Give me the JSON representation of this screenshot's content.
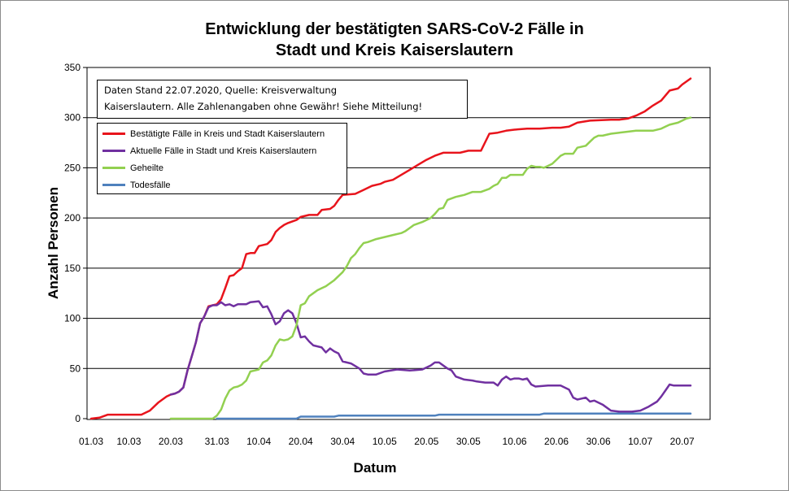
{
  "chart_data": {
    "type": "line",
    "title": "Entwicklung der bestätigten SARS-CoV-2 Fälle in Stadt und Kreis Kaiserslautern",
    "title_lines": [
      "Entwicklung der bestätigten SARS-CoV-2 Fälle in",
      "Stadt und Kreis Kaiserslautern"
    ],
    "note_lines": [
      "Daten Stand 22.07.2020, Quelle: Kreisverwaltung",
      "Kaiserslautern. Alle Zahlenangaben ohne Gewähr! Siehe Mitteilung!"
    ],
    "xlabel": "Datum",
    "ylabel": "Anzahl Personen",
    "x_range": [
      "01.03",
      "22.07"
    ],
    "ylim": [
      0,
      350
    ],
    "y_ticks": [
      0,
      50,
      100,
      150,
      200,
      250,
      300,
      350
    ],
    "x_tick_labels": [
      "01.03",
      "10.03",
      "20.03",
      "31.03",
      "10.04",
      "20.04",
      "30.04",
      "10.05",
      "20.05",
      "30.05",
      "10.06",
      "20.06",
      "30.06",
      "10.07",
      "20.07"
    ],
    "grid": "horizontal",
    "legend_position": "top-left",
    "series": [
      {
        "name": "Bestätigte Fälle in Kreis und Stadt Kaiserslautern",
        "color": "#e8141c",
        "points": [
          [
            "01.03",
            0
          ],
          [
            "03.03",
            1
          ],
          [
            "05.03",
            4
          ],
          [
            "10.03",
            4
          ],
          [
            "13.03",
            4
          ],
          [
            "15.03",
            8
          ],
          [
            "17.03",
            16
          ],
          [
            "19.03",
            22
          ],
          [
            "20.03",
            24
          ],
          [
            "21.03",
            25
          ],
          [
            "22.03",
            27
          ],
          [
            "23.03",
            31
          ],
          [
            "24.03",
            48
          ],
          [
            "25.03",
            62
          ],
          [
            "26.03",
            76
          ],
          [
            "27.03",
            95
          ],
          [
            "28.03",
            102
          ],
          [
            "29.03",
            112
          ],
          [
            "30.03",
            113
          ],
          [
            "31.03",
            114
          ],
          [
            "01.04",
            119
          ],
          [
            "02.04",
            130
          ],
          [
            "03.04",
            142
          ],
          [
            "04.04",
            143
          ],
          [
            "05.04",
            147
          ],
          [
            "06.04",
            150
          ],
          [
            "07.04",
            164
          ],
          [
            "08.04",
            165
          ],
          [
            "09.04",
            165
          ],
          [
            "10.04",
            172
          ],
          [
            "12.04",
            174
          ],
          [
            "13.04",
            178
          ],
          [
            "14.04",
            186
          ],
          [
            "15.04",
            190
          ],
          [
            "16.04",
            193
          ],
          [
            "17.04",
            195
          ],
          [
            "19.04",
            198
          ],
          [
            "20.04",
            201
          ],
          [
            "22.04",
            203
          ],
          [
            "24.04",
            203
          ],
          [
            "25.04",
            208
          ],
          [
            "27.04",
            209
          ],
          [
            "28.04",
            212
          ],
          [
            "29.04",
            218
          ],
          [
            "30.04",
            223
          ],
          [
            "03.05",
            224
          ],
          [
            "05.05",
            228
          ],
          [
            "07.05",
            232
          ],
          [
            "09.05",
            234
          ],
          [
            "10.05",
            236
          ],
          [
            "12.05",
            238
          ],
          [
            "14.05",
            243
          ],
          [
            "16.05",
            248
          ],
          [
            "18.05",
            253
          ],
          [
            "20.05",
            258
          ],
          [
            "22.05",
            262
          ],
          [
            "24.05",
            265
          ],
          [
            "28.05",
            265
          ],
          [
            "30.05",
            267
          ],
          [
            "02.06",
            267
          ],
          [
            "04.06",
            284
          ],
          [
            "06.06",
            285
          ],
          [
            "08.06",
            287
          ],
          [
            "10.06",
            288
          ],
          [
            "13.06",
            289
          ],
          [
            "16.06",
            289
          ],
          [
            "19.06",
            290
          ],
          [
            "21.06",
            290
          ],
          [
            "23.06",
            291
          ],
          [
            "25.06",
            295
          ],
          [
            "28.06",
            297
          ],
          [
            "03.07",
            298
          ],
          [
            "05.07",
            298
          ],
          [
            "07.07",
            299
          ],
          [
            "09.07",
            302
          ],
          [
            "11.07",
            306
          ],
          [
            "13.07",
            312
          ],
          [
            "15.07",
            317
          ],
          [
            "17.07",
            327
          ],
          [
            "19.07",
            329
          ],
          [
            "20.07",
            333
          ],
          [
            "22.07",
            339
          ]
        ]
      },
      {
        "name": "Aktuelle Fälle in Stadt und Kreis Kaiserslautern",
        "color": "#7030a0",
        "points": [
          [
            "20.03",
            24
          ],
          [
            "21.03",
            25
          ],
          [
            "22.03",
            27
          ],
          [
            "23.03",
            31
          ],
          [
            "24.03",
            48
          ],
          [
            "25.03",
            62
          ],
          [
            "26.03",
            76
          ],
          [
            "27.03",
            95
          ],
          [
            "28.03",
            102
          ],
          [
            "29.03",
            111
          ],
          [
            "30.03",
            113
          ],
          [
            "31.03",
            113
          ],
          [
            "01.04",
            116
          ],
          [
            "02.04",
            113
          ],
          [
            "03.04",
            114
          ],
          [
            "04.04",
            112
          ],
          [
            "05.04",
            114
          ],
          [
            "07.04",
            114
          ],
          [
            "08.04",
            116
          ],
          [
            "10.04",
            117
          ],
          [
            "11.04",
            111
          ],
          [
            "12.04",
            112
          ],
          [
            "13.04",
            104
          ],
          [
            "14.04",
            94
          ],
          [
            "15.04",
            97
          ],
          [
            "16.04",
            105
          ],
          [
            "17.04",
            108
          ],
          [
            "18.04",
            105
          ],
          [
            "19.04",
            95
          ],
          [
            "20.04",
            81
          ],
          [
            "21.04",
            82
          ],
          [
            "22.04",
            77
          ],
          [
            "23.04",
            73
          ],
          [
            "25.04",
            71
          ],
          [
            "26.04",
            66
          ],
          [
            "27.04",
            70
          ],
          [
            "28.04",
            67
          ],
          [
            "29.04",
            65
          ],
          [
            "30.04",
            57
          ],
          [
            "02.05",
            55
          ],
          [
            "04.05",
            50
          ],
          [
            "05.05",
            45
          ],
          [
            "06.05",
            44
          ],
          [
            "08.05",
            44
          ],
          [
            "10.05",
            47
          ],
          [
            "13.05",
            49
          ],
          [
            "16.05",
            48
          ],
          [
            "19.05",
            49
          ],
          [
            "21.05",
            53
          ],
          [
            "22.05",
            56
          ],
          [
            "23.05",
            56
          ],
          [
            "25.05",
            50
          ],
          [
            "26.05",
            48
          ],
          [
            "27.05",
            42
          ],
          [
            "29.05",
            39
          ],
          [
            "31.05",
            38
          ],
          [
            "01.06",
            37
          ],
          [
            "03.06",
            36
          ],
          [
            "05.06",
            36
          ],
          [
            "06.06",
            33
          ],
          [
            "07.06",
            39
          ],
          [
            "08.06",
            42
          ],
          [
            "09.06",
            39
          ],
          [
            "10.06",
            40
          ],
          [
            "11.06",
            40
          ],
          [
            "12.06",
            39
          ],
          [
            "13.06",
            40
          ],
          [
            "14.06",
            34
          ],
          [
            "15.06",
            32
          ],
          [
            "18.06",
            33
          ],
          [
            "21.06",
            33
          ],
          [
            "23.06",
            29
          ],
          [
            "24.06",
            21
          ],
          [
            "25.06",
            19
          ],
          [
            "26.06",
            20
          ],
          [
            "27.06",
            21
          ],
          [
            "28.06",
            17
          ],
          [
            "29.06",
            18
          ],
          [
            "01.07",
            14
          ],
          [
            "03.07",
            8
          ],
          [
            "05.07",
            7
          ],
          [
            "08.07",
            7
          ],
          [
            "10.07",
            8
          ],
          [
            "12.07",
            12
          ],
          [
            "14.07",
            17
          ],
          [
            "15.07",
            22
          ],
          [
            "16.07",
            28
          ],
          [
            "17.07",
            34
          ],
          [
            "18.07",
            33
          ],
          [
            "19.07",
            33
          ],
          [
            "22.07",
            33
          ]
        ]
      },
      {
        "name": "Geheilte",
        "color": "#92d050",
        "points": [
          [
            "20.03",
            0
          ],
          [
            "30.03",
            0
          ],
          [
            "31.03",
            3
          ],
          [
            "01.04",
            9
          ],
          [
            "02.04",
            20
          ],
          [
            "03.04",
            28
          ],
          [
            "04.04",
            31
          ],
          [
            "05.04",
            32
          ],
          [
            "06.04",
            34
          ],
          [
            "07.04",
            38
          ],
          [
            "08.04",
            47
          ],
          [
            "09.04",
            48
          ],
          [
            "10.04",
            49
          ],
          [
            "11.04",
            56
          ],
          [
            "12.04",
            58
          ],
          [
            "13.04",
            63
          ],
          [
            "14.04",
            73
          ],
          [
            "15.04",
            79
          ],
          [
            "16.04",
            78
          ],
          [
            "17.04",
            79
          ],
          [
            "18.04",
            82
          ],
          [
            "19.04",
            93
          ],
          [
            "20.04",
            113
          ],
          [
            "21.04",
            115
          ],
          [
            "22.04",
            122
          ],
          [
            "23.04",
            125
          ],
          [
            "24.04",
            128
          ],
          [
            "25.04",
            130
          ],
          [
            "26.04",
            132
          ],
          [
            "27.04",
            135
          ],
          [
            "28.04",
            138
          ],
          [
            "29.04",
            142
          ],
          [
            "30.04",
            146
          ],
          [
            "01.05",
            152
          ],
          [
            "02.05",
            160
          ],
          [
            "03.05",
            164
          ],
          [
            "04.05",
            170
          ],
          [
            "05.05",
            175
          ],
          [
            "06.05",
            176
          ],
          [
            "08.05",
            179
          ],
          [
            "10.05",
            181
          ],
          [
            "12.05",
            183
          ],
          [
            "14.05",
            185
          ],
          [
            "15.05",
            187
          ],
          [
            "16.05",
            190
          ],
          [
            "17.05",
            193
          ],
          [
            "19.05",
            196
          ],
          [
            "21.05",
            200
          ],
          [
            "22.05",
            204
          ],
          [
            "23.05",
            209
          ],
          [
            "24.05",
            210
          ],
          [
            "25.05",
            218
          ],
          [
            "27.05",
            221
          ],
          [
            "28.05",
            222
          ],
          [
            "29.05",
            223
          ],
          [
            "31.05",
            226
          ],
          [
            "02.06",
            226
          ],
          [
            "04.06",
            229
          ],
          [
            "05.06",
            232
          ],
          [
            "06.06",
            234
          ],
          [
            "07.06",
            240
          ],
          [
            "08.06",
            240
          ],
          [
            "09.06",
            243
          ],
          [
            "10.06",
            243
          ],
          [
            "12.06",
            243
          ],
          [
            "13.06",
            249
          ],
          [
            "14.06",
            252
          ],
          [
            "15.06",
            251
          ],
          [
            "16.06",
            251
          ],
          [
            "17.06",
            250
          ],
          [
            "18.06",
            252
          ],
          [
            "19.06",
            254
          ],
          [
            "20.06",
            258
          ],
          [
            "21.06",
            262
          ],
          [
            "22.06",
            264
          ],
          [
            "24.06",
            264
          ],
          [
            "25.06",
            270
          ],
          [
            "27.06",
            272
          ],
          [
            "28.06",
            276
          ],
          [
            "29.06",
            280
          ],
          [
            "30.06",
            282
          ],
          [
            "01.07",
            282
          ],
          [
            "03.07",
            284
          ],
          [
            "05.07",
            285
          ],
          [
            "07.07",
            286
          ],
          [
            "09.07",
            287
          ],
          [
            "13.07",
            287
          ],
          [
            "15.07",
            289
          ],
          [
            "16.07",
            291
          ],
          [
            "17.07",
            293
          ],
          [
            "19.07",
            295
          ],
          [
            "20.07",
            297
          ],
          [
            "21.07",
            299
          ],
          [
            "22.07",
            300
          ]
        ]
      },
      {
        "name": "Todesfälle",
        "color": "#4f81bd",
        "points": [
          [
            "31.03",
            0
          ],
          [
            "19.04",
            0
          ],
          [
            "20.04",
            2
          ],
          [
            "28.04",
            2
          ],
          [
            "29.04",
            3
          ],
          [
            "22.05",
            3
          ],
          [
            "23.05",
            4
          ],
          [
            "16.06",
            4
          ],
          [
            "17.06",
            5
          ],
          [
            "22.07",
            5
          ]
        ]
      }
    ]
  }
}
